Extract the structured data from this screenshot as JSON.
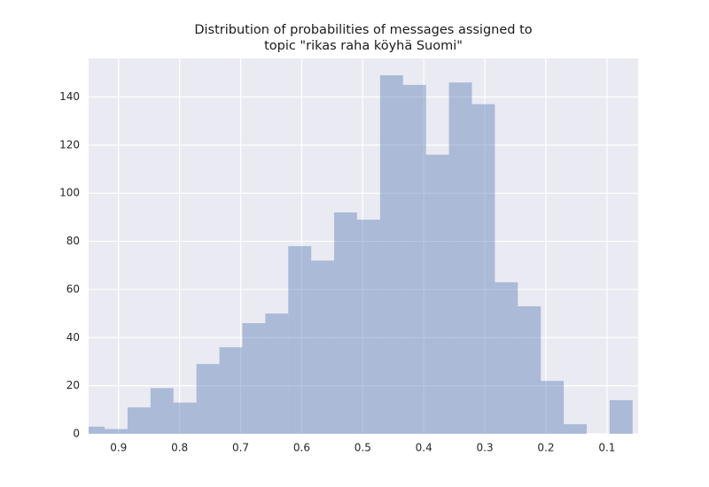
{
  "chart_data": {
    "type": "histogram",
    "title": [
      "Distribution of probabilities of messages assigned to",
      "topic \"rikas raha köyhä Suomi\""
    ],
    "bins": [
      0.058,
      0.0956,
      0.1332,
      0.1708,
      0.2084,
      0.246,
      0.2836,
      0.3212,
      0.3588,
      0.3964,
      0.434,
      0.4716,
      0.5092,
      0.5468,
      0.5844,
      0.622,
      0.6596,
      0.6972,
      0.7348,
      0.7724,
      0.81,
      0.8476,
      0.8852,
      0.9228,
      0.9604
    ],
    "values": [
      14,
      0,
      4,
      22,
      53,
      63,
      137,
      146,
      116,
      145,
      149,
      89,
      92,
      72,
      78,
      50,
      46,
      36,
      29,
      13,
      19,
      11,
      2,
      3
    ],
    "color": "#4c72b0",
    "opacity": 0.4,
    "xlim": [
      0.949,
      0.049
    ],
    "xticks": [
      0.9,
      0.8,
      0.7,
      0.6,
      0.5,
      0.4,
      0.3,
      0.2,
      0.1
    ],
    "ylim": [
      0,
      156
    ],
    "yticks": [
      0,
      20,
      40,
      60,
      80,
      100,
      120,
      140
    ],
    "grid": true,
    "background": "#eaeaf2"
  }
}
